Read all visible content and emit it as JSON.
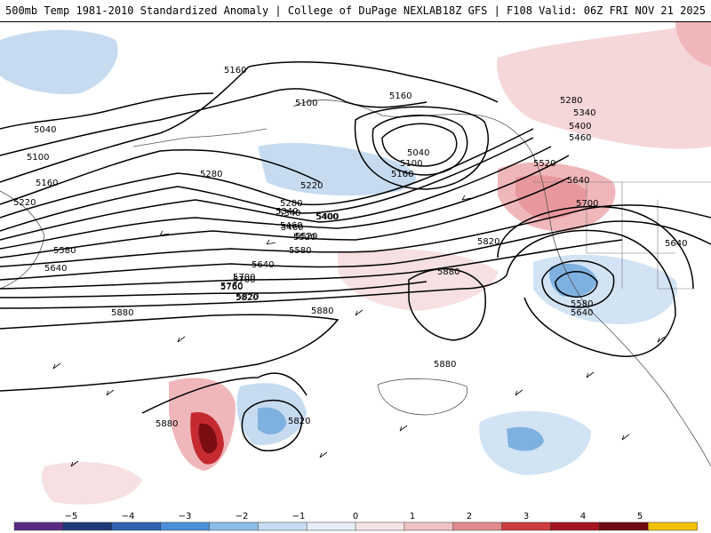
{
  "header": {
    "title_left": "500mb Temp 1981-2010 Standardized Anomaly | College of DuPage NEXLAB",
    "title_right": "18Z GFS | F108 Valid: 06Z FRI NOV 21 2025"
  },
  "map": {
    "contour_labels": [
      "5040",
      "5100",
      "5160",
      "5220",
      "5280",
      "5340",
      "5400",
      "5460",
      "5520",
      "5580",
      "5640",
      "5700",
      "5760",
      "5820",
      "5880",
      "5160",
      "5100",
      "5160",
      "5040",
      "5100",
      "5160",
      "5220",
      "5280",
      "5340",
      "5400",
      "5460",
      "5520",
      "5580",
      "5640",
      "5700",
      "5760",
      "5820",
      "5880",
      "5280",
      "5340",
      "5400",
      "5460",
      "5520",
      "5640",
      "5700",
      "5640",
      "5820",
      "5880",
      "5580",
      "5640",
      "5880",
      "5880",
      "5820"
    ]
  },
  "colorbar": {
    "ticks": [
      "−5",
      "−4",
      "−3",
      "−2",
      "−1",
      "0",
      "1",
      "2",
      "3",
      "4",
      "5"
    ],
    "colors": [
      "#5b2a86",
      "#1f3a7a",
      "#2f63b0",
      "#4b8fd8",
      "#8dbbe8",
      "#c7dcf2",
      "#e8eef8",
      "#f5e4e6",
      "#f0c2c4",
      "#e08a8e",
      "#cc3b3f",
      "#a4161e",
      "#6e0a10",
      "#f2c200"
    ]
  }
}
